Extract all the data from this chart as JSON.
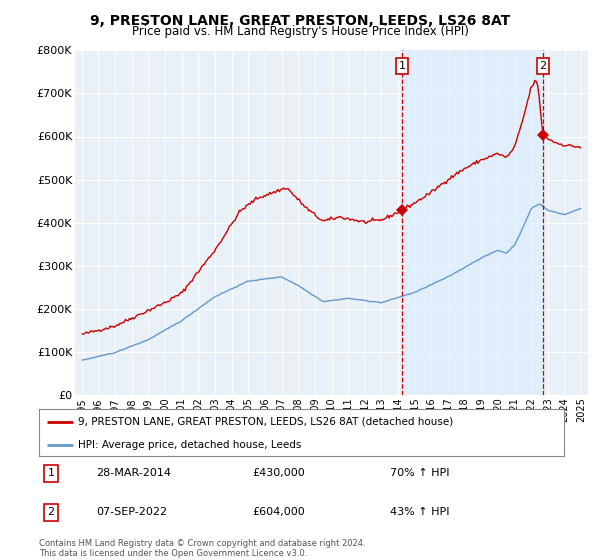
{
  "title": "9, PRESTON LANE, GREAT PRESTON, LEEDS, LS26 8AT",
  "subtitle": "Price paid vs. HM Land Registry's House Price Index (HPI)",
  "background_color": "#ffffff",
  "plot_bg_color": "#e8f0f8",
  "grid_color": "#ffffff",
  "red_line_color": "#cc0000",
  "blue_line_color": "#6699cc",
  "fill_color": "#dce8f5",
  "ylim": [
    0,
    800000
  ],
  "yticks": [
    0,
    100000,
    200000,
    300000,
    400000,
    500000,
    600000,
    700000,
    800000
  ],
  "ytick_labels": [
    "£0",
    "£100K",
    "£200K",
    "£300K",
    "£400K",
    "£500K",
    "£600K",
    "£700K",
    "£800K"
  ],
  "xtick_years": [
    1995,
    1996,
    1997,
    1998,
    1999,
    2000,
    2001,
    2002,
    2003,
    2004,
    2005,
    2006,
    2007,
    2008,
    2009,
    2010,
    2011,
    2012,
    2013,
    2014,
    2015,
    2016,
    2017,
    2018,
    2019,
    2020,
    2021,
    2022,
    2023,
    2024,
    2025
  ],
  "sale1_x": 2014.24,
  "sale1_y": 430000,
  "sale1_label": "1",
  "sale1_date": "28-MAR-2014",
  "sale1_price": "£430,000",
  "sale1_hpi": "70% ↑ HPI",
  "sale2_x": 2022.69,
  "sale2_y": 604000,
  "sale2_label": "2",
  "sale2_date": "07-SEP-2022",
  "sale2_price": "£604,000",
  "sale2_hpi": "43% ↑ HPI",
  "legend_red": "9, PRESTON LANE, GREAT PRESTON, LEEDS, LS26 8AT (detached house)",
  "legend_blue": "HPI: Average price, detached house, Leeds",
  "footer": "Contains HM Land Registry data © Crown copyright and database right 2024.\nThis data is licensed under the Open Government Licence v3.0."
}
